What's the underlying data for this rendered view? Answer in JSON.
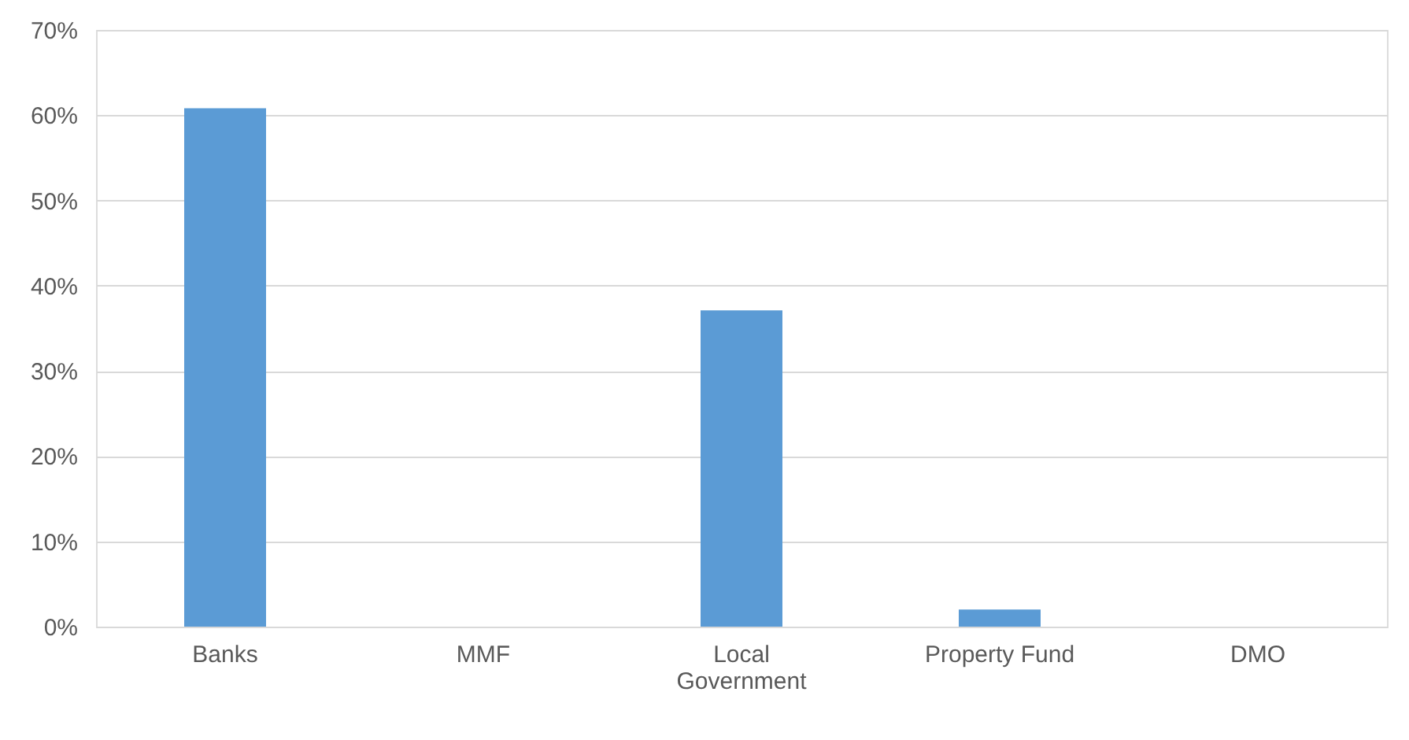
{
  "chart_data": {
    "type": "bar",
    "categories": [
      "Banks",
      "MMF",
      "Local Government",
      "Property Fund",
      "DMO"
    ],
    "values": [
      60.8,
      0,
      37.1,
      2.0,
      0
    ],
    "color": "#5b9bd5",
    "ylim": [
      0,
      70
    ],
    "yticks": [
      {
        "value": 0,
        "label": "0%"
      },
      {
        "value": 10,
        "label": "10%"
      },
      {
        "value": 20,
        "label": "20%"
      },
      {
        "value": 30,
        "label": "30%"
      },
      {
        "value": 40,
        "label": "40%"
      },
      {
        "value": 50,
        "label": "50%"
      },
      {
        "value": 60,
        "label": "60%"
      },
      {
        "value": 70,
        "label": "70%"
      }
    ],
    "grid": "y"
  }
}
